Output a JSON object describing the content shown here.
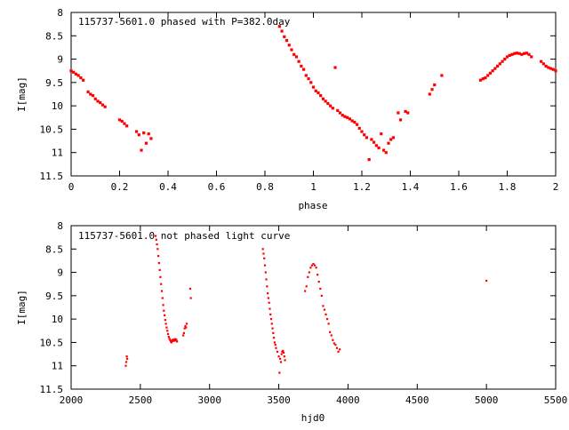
{
  "colors": {
    "points": "#ff0000",
    "axes": "#000000",
    "background": "#ffffff"
  },
  "chart_data": [
    {
      "type": "scatter",
      "title": "115737-5601.0 phased with P=382.0day",
      "xlabel": "phase",
      "ylabel": "I[mag]",
      "xlim": [
        0,
        2
      ],
      "ylim": [
        11.5,
        8
      ],
      "y_inverted": true,
      "grid": false,
      "x_ticks": [
        0,
        0.2,
        0.4,
        0.6,
        0.8,
        1,
        1.2,
        1.4,
        1.6,
        1.8,
        2
      ],
      "x_tick_labels": [
        "0",
        "0.2",
        "0.4",
        "0.6",
        "0.8",
        "1",
        "1.2",
        "1.4",
        "1.6",
        "1.8",
        "2"
      ],
      "y_ticks": [
        8,
        8.5,
        9,
        9.5,
        10,
        10.5,
        11,
        11.5
      ],
      "y_tick_labels": [
        "8",
        "8.5",
        "9",
        "9.5",
        "10",
        "10.5",
        "11",
        "11.5"
      ],
      "x": [
        0.0,
        0.01,
        0.02,
        0.03,
        0.04,
        0.05,
        0.07,
        0.08,
        0.09,
        0.1,
        0.11,
        0.12,
        0.13,
        0.14,
        0.2,
        0.21,
        0.22,
        0.23,
        0.27,
        0.28,
        0.29,
        0.3,
        0.31,
        0.32,
        0.33,
        0.86,
        0.87,
        0.88,
        0.89,
        0.9,
        0.91,
        0.92,
        0.93,
        0.94,
        0.95,
        0.96,
        0.97,
        0.98,
        0.99,
        1.0,
        1.01,
        1.02,
        1.03,
        1.04,
        1.05,
        1.06,
        1.07,
        1.08,
        1.09,
        1.1,
        1.11,
        1.12,
        1.13,
        1.14,
        1.15,
        1.16,
        1.17,
        1.18,
        1.19,
        1.2,
        1.21,
        1.22,
        1.23,
        1.24,
        1.25,
        1.26,
        1.27,
        1.28,
        1.29,
        1.3,
        1.31,
        1.32,
        1.33,
        1.35,
        1.36,
        1.38,
        1.39,
        1.48,
        1.49,
        1.5,
        1.53,
        1.69,
        1.7,
        1.71,
        1.72,
        1.73,
        1.74,
        1.75,
        1.76,
        1.77,
        1.78,
        1.79,
        1.8,
        1.81,
        1.82,
        1.83,
        1.84,
        1.85,
        1.86,
        1.87,
        1.88,
        1.89,
        1.9,
        1.94,
        1.95,
        1.96,
        1.97,
        1.98,
        1.99,
        2.0
      ],
      "y": [
        9.25,
        9.28,
        9.32,
        9.35,
        9.4,
        9.45,
        9.7,
        9.75,
        9.78,
        9.85,
        9.9,
        9.93,
        9.98,
        10.02,
        10.3,
        10.33,
        10.38,
        10.43,
        10.55,
        10.62,
        10.95,
        10.58,
        10.8,
        10.6,
        10.7,
        8.3,
        8.4,
        8.52,
        8.6,
        8.7,
        8.8,
        8.9,
        8.95,
        9.05,
        9.15,
        9.22,
        9.35,
        9.42,
        9.5,
        9.6,
        9.68,
        9.72,
        9.78,
        9.85,
        9.9,
        9.95,
        10.0,
        10.05,
        9.18,
        10.1,
        10.15,
        10.2,
        10.23,
        10.25,
        10.28,
        10.32,
        10.35,
        10.4,
        10.48,
        10.55,
        10.62,
        10.68,
        11.15,
        10.72,
        10.78,
        10.85,
        10.9,
        10.6,
        10.95,
        11.0,
        10.8,
        10.72,
        10.68,
        10.15,
        10.3,
        10.12,
        10.15,
        9.75,
        9.65,
        9.55,
        9.35,
        9.45,
        9.42,
        9.4,
        9.35,
        9.3,
        9.25,
        9.2,
        9.15,
        9.1,
        9.05,
        9.0,
        8.95,
        8.92,
        8.9,
        8.88,
        8.87,
        8.88,
        8.9,
        8.88,
        8.87,
        8.9,
        8.95,
        9.05,
        9.1,
        9.15,
        9.18,
        9.2,
        9.22,
        9.25
      ]
    },
    {
      "type": "scatter",
      "title": "115737-5601.0 not phased light curve",
      "xlabel": "hjd0",
      "ylabel": "I[mag]",
      "xlim": [
        2000,
        5500
      ],
      "ylim": [
        11.5,
        8
      ],
      "y_inverted": true,
      "grid": false,
      "x_ticks": [
        2000,
        2500,
        3000,
        3500,
        4000,
        4500,
        5000,
        5500
      ],
      "x_tick_labels": [
        "2000",
        "2500",
        "3000",
        "3500",
        "4000",
        "4500",
        "5000",
        "5500"
      ],
      "y_ticks": [
        8,
        8.5,
        9,
        9.5,
        10,
        10.5,
        11,
        11.5
      ],
      "y_tick_labels": [
        "8",
        "8.5",
        "9",
        "9.5",
        "10",
        "10.5",
        "11",
        "11.5"
      ],
      "x": [
        2395,
        2398,
        2402,
        2405,
        2610,
        2615,
        2620,
        2625,
        2630,
        2635,
        2640,
        2645,
        2650,
        2655,
        2660,
        2665,
        2670,
        2675,
        2680,
        2685,
        2690,
        2695,
        2700,
        2705,
        2710,
        2715,
        2720,
        2725,
        2730,
        2735,
        2740,
        2745,
        2750,
        2755,
        2760,
        2765,
        2810,
        2815,
        2820,
        2825,
        2830,
        2835,
        2860,
        2865,
        3385,
        3390,
        3395,
        3400,
        3405,
        3410,
        3415,
        3420,
        3425,
        3430,
        3435,
        3440,
        3445,
        3450,
        3455,
        3460,
        3465,
        3470,
        3475,
        3480,
        3490,
        3500,
        3505,
        3510,
        3515,
        3520,
        3525,
        3530,
        3535,
        3540,
        3545,
        3690,
        3700,
        3710,
        3720,
        3730,
        3740,
        3750,
        3760,
        3770,
        3780,
        3790,
        3800,
        3810,
        3820,
        3830,
        3840,
        3850,
        3860,
        3870,
        3880,
        3890,
        3900,
        3910,
        3920,
        3930,
        3940,
        5000
      ],
      "y": [
        11.0,
        10.92,
        10.8,
        10.85,
        8.22,
        8.3,
        8.4,
        8.5,
        8.65,
        8.8,
        8.95,
        9.1,
        9.25,
        9.4,
        9.55,
        9.7,
        9.82,
        9.92,
        10.02,
        10.1,
        10.18,
        10.25,
        10.32,
        10.38,
        10.42,
        10.45,
        10.48,
        10.5,
        10.46,
        10.44,
        10.47,
        10.45,
        10.43,
        10.46,
        10.44,
        10.48,
        10.35,
        10.3,
        10.2,
        10.15,
        10.18,
        10.1,
        9.35,
        9.55,
        8.5,
        8.6,
        8.7,
        8.85,
        9.0,
        9.15,
        9.3,
        9.45,
        9.55,
        9.65,
        9.78,
        9.9,
        10.0,
        10.1,
        10.2,
        10.3,
        10.4,
        10.5,
        10.55,
        10.62,
        10.7,
        10.8,
        11.15,
        10.85,
        10.92,
        10.75,
        10.7,
        10.68,
        10.72,
        10.8,
        10.88,
        9.4,
        9.3,
        9.1,
        9.0,
        8.9,
        8.85,
        8.82,
        8.85,
        8.9,
        9.05,
        9.2,
        9.35,
        9.5,
        9.72,
        9.8,
        9.9,
        10.0,
        10.1,
        10.28,
        10.35,
        10.45,
        10.52,
        10.55,
        10.62,
        10.7,
        10.65,
        9.18
      ]
    }
  ]
}
